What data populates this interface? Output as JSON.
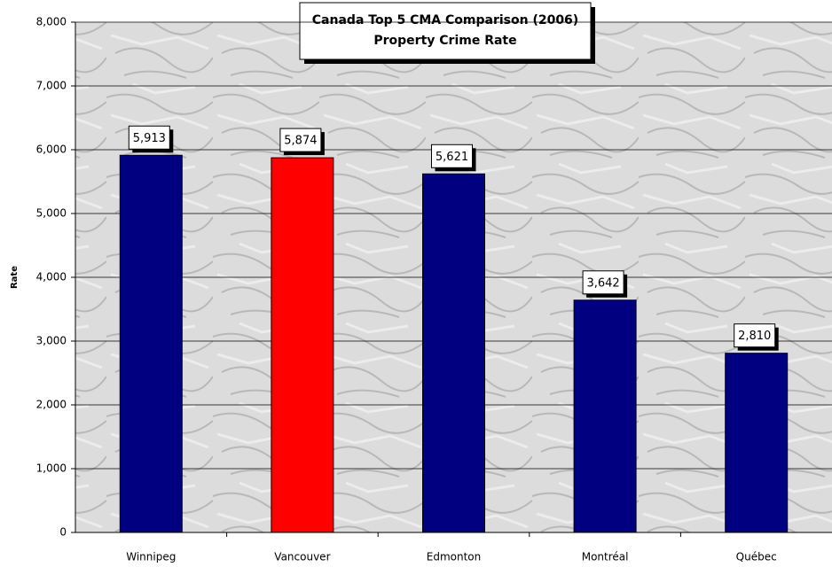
{
  "chart_data": {
    "type": "bar",
    "title": "Canada Top 5 CMA Comparison (2006)",
    "subtitle": "Property Crime Rate",
    "y_label": "Rate",
    "categories": [
      "Winnipeg",
      "Vancouver",
      "Edmonton",
      "Montréal",
      "Québec"
    ],
    "values": [
      5913,
      5874,
      5621,
      3642,
      2810
    ],
    "value_labels": [
      "5,913",
      "5,874",
      "5,621",
      "3,642",
      "2,810"
    ],
    "colors": [
      "#000080",
      "#ff0000",
      "#000080",
      "#000080",
      "#000080"
    ],
    "ylim": [
      0,
      8000
    ],
    "yticks": [
      0,
      {
        "value": 1000,
        "label": "1,000"
      },
      {
        "value": 2000,
        "label": "2,000"
      },
      {
        "value": 3000,
        "label": "3,000"
      },
      {
        "value": 4000,
        "label": "4,000"
      },
      {
        "value": 5000,
        "label": "5,000"
      },
      {
        "value": 6000,
        "label": "6,000"
      },
      {
        "value": 7000,
        "label": "7,000"
      },
      {
        "value": 8000,
        "label": "8,000"
      }
    ],
    "grid": true
  }
}
